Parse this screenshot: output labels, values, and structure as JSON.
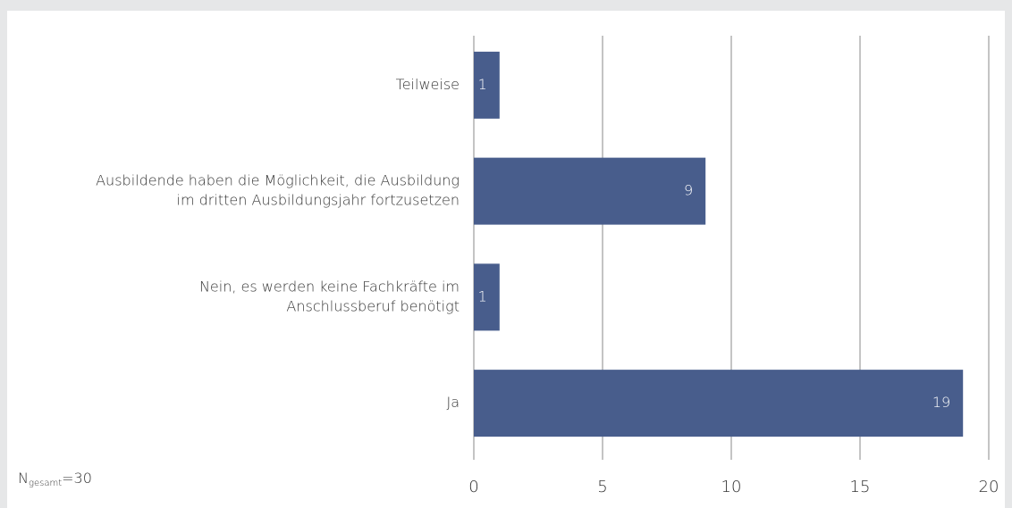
{
  "chart_data": {
    "type": "barh",
    "categories": [
      [
        "Teilweise"
      ],
      [
        "Ausbildende haben die Möglichkeit, die Ausbildung",
        "im dritten Ausbildungsjahr fortzusetzen"
      ],
      [
        "Nein, es werden keine Fachkräfte im",
        "Anschlussberuf benötigt"
      ],
      [
        "Ja"
      ]
    ],
    "values": [
      1,
      9,
      1,
      19
    ],
    "color": "#485d8c",
    "xlim": [
      0,
      20
    ],
    "xticks": [
      0,
      5,
      10,
      15,
      20
    ],
    "grid": true,
    "annotation": {
      "base": "N",
      "subscript": "gesamt",
      "text": "=30"
    }
  }
}
